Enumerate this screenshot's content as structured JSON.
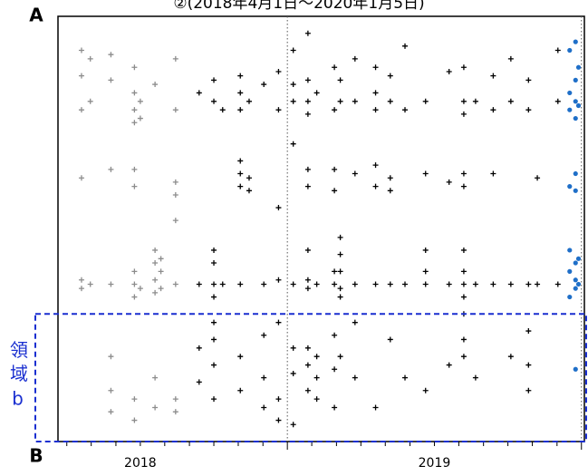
{
  "chart_data": {
    "type": "scatter",
    "title": "②(2018年4月1日～2020年1月5日)",
    "label_top": "A",
    "label_bottom": "B",
    "region_label": "領域b",
    "xlim": [
      2018.22,
      2020.01
    ],
    "ylim": [
      0,
      100
    ],
    "xticks": [
      {
        "value": 2018.5,
        "label": "2018"
      },
      {
        "value": 2019.5,
        "label": "2019"
      }
    ],
    "xminor_ticks": [
      2018.25,
      2018.333,
      2018.417,
      2018.5,
      2018.583,
      2018.667,
      2018.75,
      2018.833,
      2018.917,
      2019,
      2019.083,
      2019.167,
      2019.25,
      2019.333,
      2019.417,
      2019.5,
      2019.583,
      2019.667,
      2019.75,
      2019.833,
      2019.917,
      2020
    ],
    "vlines": [
      2019,
      2020
    ],
    "region": {
      "ylim": [
        70,
        100
      ],
      "color": "#1a2fd0"
    },
    "series": [
      {
        "color": "#8c8c8c",
        "marker": "plus",
        "x": [
          2018.3,
          2018.3,
          2018.3,
          2018.3,
          2018.3,
          2018.3,
          2018.33,
          2018.33,
          2018.33,
          2018.4,
          2018.4,
          2018.4,
          2018.4,
          2018.4,
          2018.4,
          2018.4,
          2018.48,
          2018.48,
          2018.48,
          2018.48,
          2018.48,
          2018.48,
          2018.48,
          2018.48,
          2018.48,
          2018.48,
          2018.48,
          2018.5,
          2018.5,
          2018.5,
          2018.55,
          2018.55,
          2018.55,
          2018.55,
          2018.55,
          2018.55,
          2018.55,
          2018.57,
          2018.57,
          2018.57,
          2018.62,
          2018.62,
          2018.62,
          2018.62,
          2018.62,
          2018.62,
          2018.62,
          2018.62
        ],
        "y": [
          8,
          14,
          22,
          38,
          62,
          64,
          10,
          20,
          63,
          9,
          15,
          36,
          63,
          88,
          93,
          80,
          12,
          18,
          22,
          25,
          36,
          40,
          60,
          63,
          66,
          90,
          95,
          20,
          24,
          64,
          16,
          55,
          58,
          62,
          65,
          85,
          92,
          57,
          60,
          64,
          10,
          22,
          39,
          42,
          48,
          63,
          90,
          93
        ]
      },
      {
        "color": "#000000",
        "marker": "plus",
        "x": [
          2018.7,
          2018.7,
          2018.7,
          2018.7,
          2018.75,
          2018.75,
          2018.75,
          2018.75,
          2018.75,
          2018.75,
          2018.75,
          2018.75,
          2018.75,
          2018.75,
          2018.78,
          2018.78,
          2018.84,
          2018.84,
          2018.84,
          2018.84,
          2018.84,
          2018.84,
          2018.84,
          2018.84,
          2018.84,
          2018.87,
          2018.87,
          2018.87,
          2018.92,
          2018.92,
          2018.92,
          2018.92,
          2018.92,
          2018.97,
          2018.97,
          2018.97,
          2018.97,
          2018.97,
          2018.97,
          2018.97,
          2019.02,
          2019.02,
          2019.02,
          2019.02,
          2019.02,
          2019.02,
          2019.02,
          2019.02,
          2019.07,
          2019.07,
          2019.07,
          2019.07,
          2019.07,
          2019.07,
          2019.07,
          2019.07,
          2019.07,
          2019.07,
          2019.07,
          2019.07,
          2019.1,
          2019.1,
          2019.1,
          2019.1,
          2019.1,
          2019.16,
          2019.16,
          2019.16,
          2019.16,
          2019.16,
          2019.16,
          2019.16,
          2019.16,
          2019.16,
          2019.18,
          2019.18,
          2019.18,
          2019.18,
          2019.18,
          2019.18,
          2019.18,
          2019.18,
          2019.23,
          2019.23,
          2019.23,
          2019.23,
          2019.23,
          2019.23,
          2019.3,
          2019.3,
          2019.3,
          2019.3,
          2019.3,
          2019.3,
          2019.3,
          2019.35,
          2019.35,
          2019.35,
          2019.35,
          2019.35,
          2019.35,
          2019.4,
          2019.4,
          2019.4,
          2019.4,
          2019.47,
          2019.47,
          2019.47,
          2019.47,
          2019.47,
          2019.47,
          2019.55,
          2019.55,
          2019.55,
          2019.55,
          2019.6,
          2019.6,
          2019.6,
          2019.6,
          2019.6,
          2019.6,
          2019.6,
          2019.6,
          2019.6,
          2019.6,
          2019.6,
          2019.6,
          2019.64,
          2019.64,
          2019.64,
          2019.7,
          2019.7,
          2019.7,
          2019.7,
          2019.76,
          2019.76,
          2019.76,
          2019.76,
          2019.82,
          2019.82,
          2019.82,
          2019.82,
          2019.82,
          2019.82,
          2019.85,
          2019.85,
          2019.92,
          2019.92,
          2019.92
        ],
        "y": [
          18,
          63,
          78,
          86,
          15,
          20,
          55,
          58,
          63,
          66,
          72,
          76,
          82,
          90,
          22,
          63,
          14,
          18,
          22,
          34,
          37,
          40,
          63,
          80,
          88,
          20,
          38,
          41,
          16,
          63,
          75,
          85,
          92,
          13,
          22,
          45,
          62,
          72,
          90,
          95,
          8,
          16,
          20,
          30,
          63,
          78,
          84,
          96,
          4,
          15,
          20,
          23,
          36,
          40,
          55,
          62,
          64,
          78,
          82,
          88,
          18,
          63,
          80,
          85,
          90,
          12,
          22,
          36,
          41,
          60,
          63,
          75,
          83,
          92,
          15,
          20,
          52,
          56,
          60,
          64,
          66,
          80,
          10,
          20,
          37,
          63,
          72,
          85,
          12,
          18,
          22,
          35,
          40,
          63,
          92,
          14,
          20,
          38,
          41,
          63,
          76,
          7,
          22,
          63,
          85,
          20,
          37,
          55,
          60,
          63,
          88,
          13,
          39,
          63,
          82,
          12,
          20,
          23,
          37,
          40,
          55,
          60,
          63,
          66,
          70,
          76,
          80,
          20,
          63,
          85,
          14,
          22,
          37,
          63,
          10,
          20,
          63,
          80,
          15,
          22,
          63,
          74,
          82,
          88,
          38,
          63,
          8,
          20,
          63
        ]
      },
      {
        "color": "#1f6fc8",
        "marker": "dot",
        "x": [
          2019.96,
          2019.96,
          2019.96,
          2019.96,
          2019.96,
          2019.96,
          2019.96,
          2019.98,
          2019.98,
          2019.98,
          2019.98,
          2019.98,
          2019.98,
          2019.98,
          2019.98,
          2019.98,
          2019.98,
          2019.99,
          2019.99,
          2019.99,
          2019.99
        ],
        "y": [
          8,
          18,
          22,
          40,
          55,
          60,
          66,
          6,
          15,
          20,
          24,
          37,
          41,
          58,
          62,
          64,
          83,
          12,
          21,
          57,
          63
        ]
      }
    ]
  }
}
